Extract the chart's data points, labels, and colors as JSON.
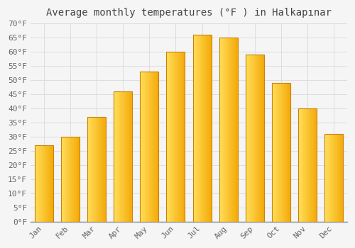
{
  "title": "Average monthly temperatures (°F ) in Halkapınar",
  "months": [
    "Jan",
    "Feb",
    "Mar",
    "Apr",
    "May",
    "Jun",
    "Jul",
    "Aug",
    "Sep",
    "Oct",
    "Nov",
    "Dec"
  ],
  "values": [
    27,
    30,
    37,
    46,
    53,
    60,
    66,
    65,
    59,
    49,
    40,
    31
  ],
  "bar_color_left": "#FFD44A",
  "bar_color_right": "#F5A800",
  "bar_edge_color": "#C8820A",
  "ylim": [
    0,
    70
  ],
  "ytick_step": 5,
  "background_color": "#f5f5f5",
  "plot_bg_color": "#f5f5f5",
  "grid_color": "#dddddd",
  "title_fontsize": 10,
  "tick_fontsize": 8,
  "tick_color": "#666666",
  "title_color": "#444444"
}
